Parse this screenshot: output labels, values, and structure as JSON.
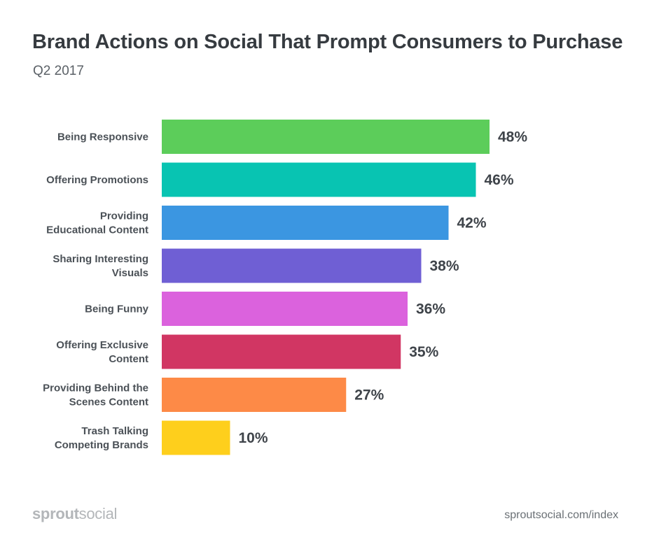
{
  "header": {
    "title": "Brand Actions on Social That Prompt Consumers to Purchase",
    "subtitle": "Q2 2017"
  },
  "chart_data": {
    "type": "bar",
    "orientation": "horizontal",
    "title": "Brand Actions on Social That Prompt Consumers to Purchase",
    "subtitle": "Q2 2017",
    "xlabel": "",
    "ylabel": "",
    "grid": false,
    "legend": "none",
    "xlim": [
      0,
      100
    ],
    "unit": "%",
    "categories": [
      [
        "Being Responsive"
      ],
      [
        "Offering Promotions"
      ],
      [
        "Providing",
        "Educational Content"
      ],
      [
        "Sharing Interesting",
        "Visuals"
      ],
      [
        "Being Funny"
      ],
      [
        "Offering Exclusive",
        "Content"
      ],
      [
        "Providing Behind the",
        "Scenes Content"
      ],
      [
        "Trash Talking",
        "Competing Brands"
      ]
    ],
    "values": [
      48,
      46,
      42,
      38,
      36,
      35,
      27,
      10
    ],
    "value_labels": [
      "48%",
      "46%",
      "42%",
      "38%",
      "36%",
      "35%",
      "27%",
      "10%"
    ],
    "colors": [
      "#5ccd5a",
      "#08c4b2",
      "#3b96e1",
      "#6f5fd4",
      "#db62dd",
      "#d13663",
      "#fd8a47",
      "#fecf1c"
    ]
  },
  "footer": {
    "logo_bold": "sprout",
    "logo_light": "social",
    "url": "sproutsocial.com/index"
  }
}
